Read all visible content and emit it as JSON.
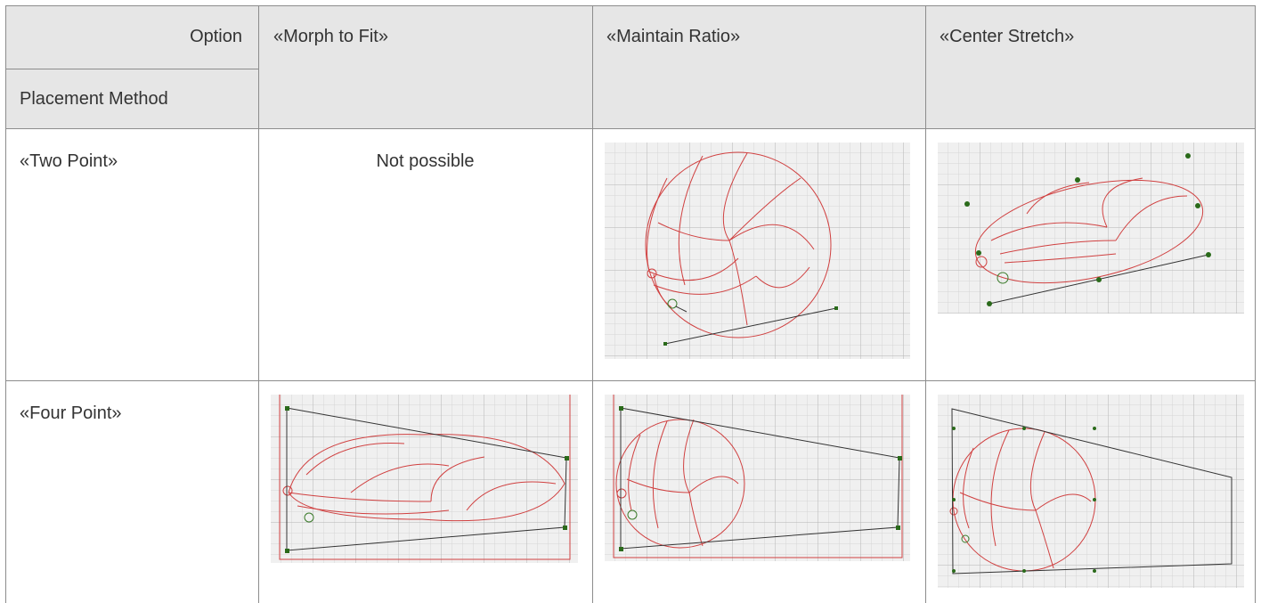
{
  "table": {
    "header": {
      "option": "Option",
      "placement": "Placement Method",
      "columns": [
        "«Morph to Fit»",
        "«Maintain Ratio»",
        "«Center Stretch»"
      ]
    },
    "rows": [
      {
        "label": "«Two Point»",
        "cells": [
          "Not possible"
        ]
      },
      {
        "label": "«Four Point»"
      }
    ]
  }
}
